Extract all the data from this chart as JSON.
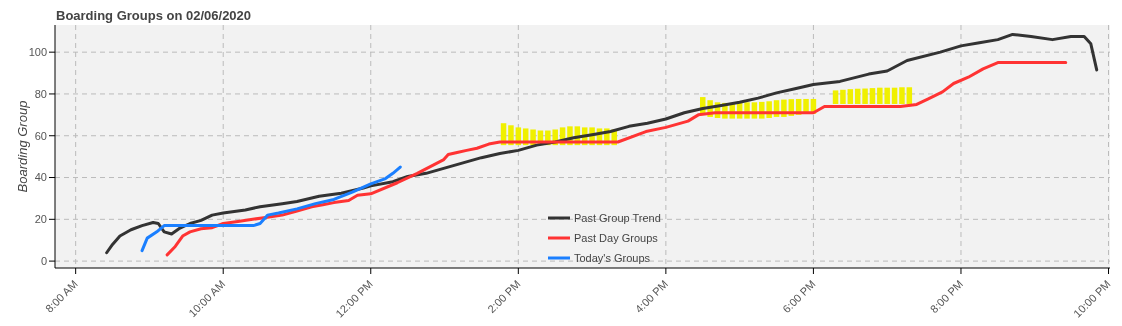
{
  "chart_data": {
    "type": "line",
    "title": "Boarding Groups on 02/06/2020",
    "ylabel": "Boarding Group",
    "xlim": [
      7.72,
      22.02
    ],
    "ylim": [
      -3.3,
      113
    ],
    "xticks": [
      {
        "value": 8,
        "label": "8:00 AM"
      },
      {
        "value": 10,
        "label": "10:00 AM"
      },
      {
        "value": 12,
        "label": "12:00 PM"
      },
      {
        "value": 14,
        "label": "2:00 PM"
      },
      {
        "value": 16,
        "label": "4:00 PM"
      },
      {
        "value": 18,
        "label": "6:00 PM"
      },
      {
        "value": 20,
        "label": "8:00 PM"
      },
      {
        "value": 22,
        "label": "10:00 PM"
      }
    ],
    "yticks": [
      0,
      20,
      40,
      60,
      80,
      100
    ],
    "grid": true,
    "legend": "bottom",
    "line_style": "solid",
    "marker": "none",
    "series": [
      {
        "type": "bar",
        "color": "#f0f000",
        "x": [
          13.8,
          13.9,
          14.0,
          14.1,
          14.2,
          14.3,
          14.4,
          14.5,
          14.6,
          14.7,
          14.8,
          14.9,
          15.0,
          15.1,
          15.2,
          15.3
        ],
        "base": [
          55.5,
          55.5,
          55.5,
          55.5,
          55.5,
          55.5,
          55.5,
          55.5,
          55.5,
          55.5,
          55.5,
          55.5,
          55.5,
          55.5,
          55.5,
          55.5
        ],
        "values": [
          10.5,
          9.5,
          8.5,
          8,
          7.5,
          7,
          7,
          7.5,
          8.5,
          9,
          9,
          8.5,
          8.5,
          8,
          8,
          7.5
        ]
      },
      {
        "type": "bar",
        "color": "#f0f000",
        "x": [
          16.5,
          16.6,
          16.7,
          16.8,
          16.9,
          17.0,
          17.1,
          17.2,
          17.3,
          17.4,
          17.5,
          17.6,
          17.7,
          17.8,
          17.9,
          18.0
        ],
        "base": [
          70,
          69,
          68.5,
          68.2,
          68.2,
          68.2,
          68.2,
          68.2,
          68.2,
          68.5,
          69,
          69,
          69.5,
          70,
          70.5,
          70.5
        ],
        "values": [
          8.5,
          8,
          7.5,
          7.5,
          7.5,
          7.6,
          7.8,
          7.8,
          8,
          8,
          8,
          8.3,
          8,
          7.6,
          7.1,
          7.1
        ]
      },
      {
        "type": "bar",
        "color": "#f0f000",
        "x": [
          18.3,
          18.4,
          18.5,
          18.6,
          18.7,
          18.8,
          18.9,
          19.0,
          19.1,
          19.2,
          19.3
        ],
        "base": [
          75.2,
          75.2,
          75.2,
          75.2,
          75.2,
          75.2,
          75.2,
          75.2,
          75.2,
          75.2,
          75.2
        ],
        "values": [
          6.5,
          6.8,
          7.1,
          7.3,
          7.4,
          7.6,
          7.8,
          7.8,
          7.8,
          8,
          8
        ]
      },
      {
        "name": "Past Group Trend",
        "color": "#333333",
        "x": [
          8.42,
          8.5,
          8.6,
          8.75,
          8.9,
          9.05,
          9.12,
          9.2,
          9.3,
          9.4,
          9.55,
          9.7,
          9.85,
          10.0,
          10.3,
          10.5,
          10.8,
          11.0,
          11.3,
          11.6,
          11.9,
          12.0,
          12.3,
          12.5,
          12.75,
          13.0,
          13.25,
          13.5,
          13.75,
          14.0,
          14.25,
          14.5,
          14.75,
          15.0,
          15.25,
          15.5,
          15.75,
          16.0,
          16.25,
          16.5,
          16.75,
          17.0,
          17.25,
          17.5,
          17.75,
          18.0,
          18.36,
          18.75,
          19.0,
          19.27,
          19.72,
          20.0,
          20.25,
          20.5,
          20.7,
          20.95,
          21.24,
          21.49,
          21.67,
          21.76,
          21.84
        ],
        "values": [
          4,
          8,
          12,
          15,
          17,
          18.5,
          18,
          14,
          13,
          15.5,
          18,
          19.5,
          22,
          23,
          24.5,
          26,
          27.5,
          28.5,
          31,
          32.5,
          35,
          36,
          38,
          40.5,
          42,
          44.5,
          47,
          49.5,
          51.5,
          53,
          55.5,
          57,
          59,
          60.5,
          62,
          64.5,
          66,
          68,
          71,
          73,
          74.5,
          76,
          78,
          80.5,
          82.5,
          84.5,
          86,
          89.5,
          91,
          96,
          100,
          103,
          104.5,
          106,
          108.5,
          107.5,
          106,
          107.5,
          107.5,
          104,
          91.5
        ]
      },
      {
        "name": "Past Day Groups",
        "color": "#ff3333",
        "x": [
          9.24,
          9.35,
          9.45,
          9.55,
          9.7,
          9.85,
          10.0,
          10.2,
          10.4,
          10.6,
          10.8,
          11.0,
          11.2,
          11.35,
          11.5,
          11.7,
          11.82,
          12.0,
          12.36,
          12.63,
          12.99,
          13.05,
          13.17,
          13.3,
          13.44,
          13.6,
          13.75,
          14.5,
          15.35,
          15.73,
          16.0,
          16.3,
          16.44,
          16.67,
          17.5,
          18.0,
          18.15,
          19.18,
          19.4,
          19.55,
          19.75,
          19.9,
          20.1,
          20.3,
          20.5,
          21.42
        ],
        "values": [
          3,
          7,
          12,
          14,
          15.5,
          16,
          18,
          19,
          20,
          21,
          22,
          24,
          26,
          27,
          28,
          29,
          31.5,
          32.2,
          37.5,
          42,
          48.6,
          51,
          52,
          53,
          54,
          56,
          57,
          57,
          57,
          62,
          64,
          67,
          70,
          71,
          71,
          71,
          74,
          74,
          75,
          77.5,
          81,
          85,
          88,
          92,
          95,
          95
        ]
      },
      {
        "name": "Today's Groups",
        "color": "#1a7fff",
        "x": [
          8.9,
          8.97,
          9.1,
          9.2,
          9.5,
          10.0,
          10.41,
          10.5,
          10.6,
          10.75,
          11.0,
          11.25,
          11.5,
          11.75,
          12.0,
          12.2,
          12.3,
          12.4
        ],
        "values": [
          5,
          11,
          14,
          17,
          17,
          17,
          17,
          18,
          22,
          23,
          25,
          27.5,
          29.5,
          33,
          37,
          39.5,
          42,
          45
        ]
      }
    ]
  }
}
